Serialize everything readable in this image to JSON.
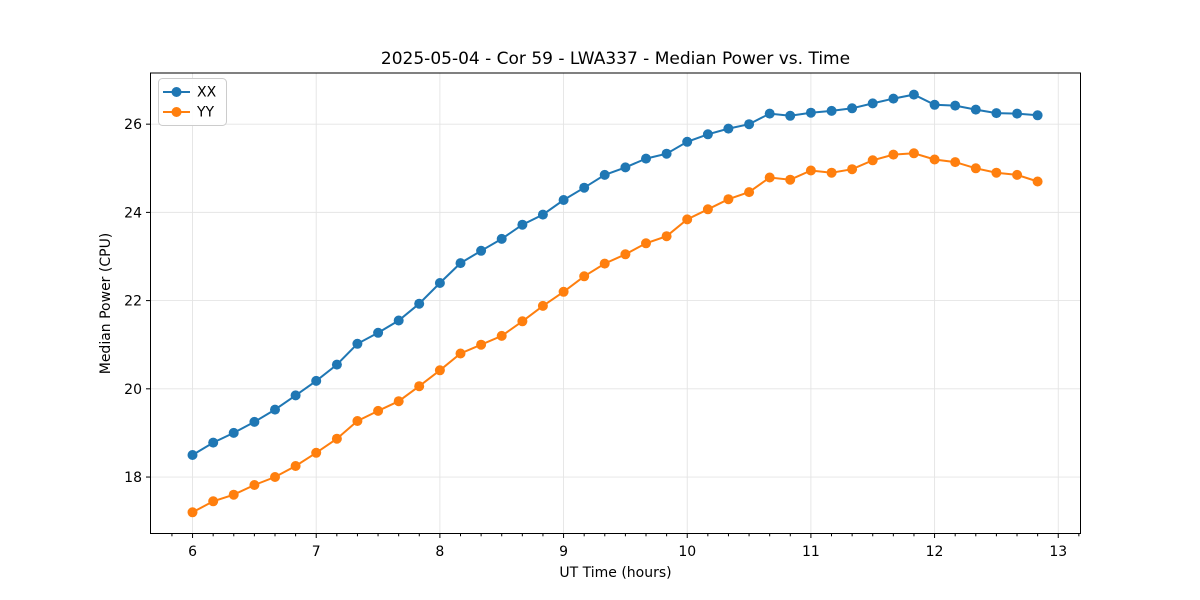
{
  "chart_data": {
    "type": "line",
    "title": "2025-05-04 - Cor 59 - LWA337 - Median Power vs. Time",
    "xlabel": "UT Time (hours)",
    "ylabel": "Median Power (CPU)",
    "xlim": [
      5.66,
      13.18
    ],
    "ylim": [
      16.72,
      27.16
    ],
    "xticks": [
      6,
      7,
      8,
      9,
      10,
      11,
      12,
      13
    ],
    "yticks": [
      18,
      20,
      22,
      24,
      26
    ],
    "minor_xtick_step_hours": 0.1667,
    "grid": true,
    "legend_position": "upper left",
    "x": [
      6.0,
      6.167,
      6.333,
      6.5,
      6.667,
      6.833,
      7.0,
      7.167,
      7.333,
      7.5,
      7.667,
      7.833,
      8.0,
      8.167,
      8.333,
      8.5,
      8.667,
      8.833,
      9.0,
      9.167,
      9.333,
      9.5,
      9.667,
      9.833,
      10.0,
      10.167,
      10.333,
      10.5,
      10.667,
      10.833,
      11.0,
      11.167,
      11.333,
      11.5,
      11.667,
      11.833,
      12.0,
      12.167,
      12.333,
      12.5,
      12.667,
      12.833
    ],
    "series": [
      {
        "name": "XX",
        "color": "#1f77b4",
        "values": [
          18.5,
          18.78,
          19.0,
          19.25,
          19.53,
          19.85,
          20.18,
          20.55,
          21.02,
          21.27,
          21.55,
          21.93,
          22.4,
          22.85,
          23.13,
          23.4,
          23.72,
          23.95,
          24.28,
          24.56,
          24.85,
          25.02,
          25.22,
          25.33,
          25.6,
          25.77,
          25.9,
          26.0,
          26.24,
          26.19,
          26.26,
          26.3,
          26.36,
          26.47,
          26.58,
          26.67,
          26.44,
          26.42,
          26.33,
          26.25,
          26.24,
          26.2
        ]
      },
      {
        "name": "YY",
        "color": "#ff7f0e",
        "values": [
          17.2,
          17.45,
          17.6,
          17.82,
          18.0,
          18.25,
          18.55,
          18.87,
          19.27,
          19.5,
          19.72,
          20.06,
          20.42,
          20.8,
          21.0,
          21.2,
          21.53,
          21.88,
          22.2,
          22.55,
          22.84,
          23.05,
          23.3,
          23.46,
          23.84,
          24.07,
          24.3,
          24.46,
          24.79,
          24.74,
          24.95,
          24.9,
          24.98,
          25.18,
          25.31,
          25.34,
          25.2,
          25.14,
          25.0,
          24.9,
          24.85,
          24.7
        ]
      }
    ]
  }
}
